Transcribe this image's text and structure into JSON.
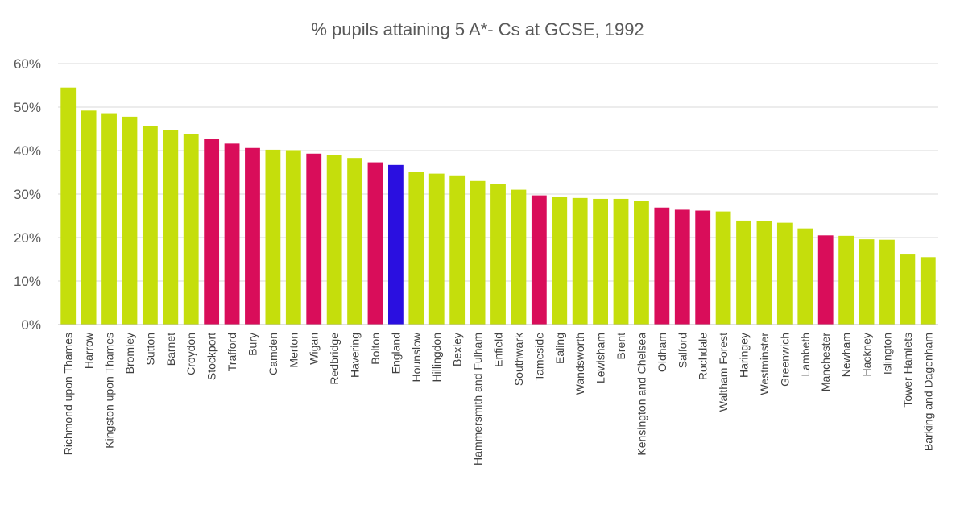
{
  "chart_data": {
    "type": "bar",
    "title": "% pupils attaining 5 A*- Cs at GCSE, 1992",
    "xlabel": "",
    "ylabel": "",
    "ylim": [
      0,
      60
    ],
    "yticks": [
      0,
      10,
      20,
      30,
      40,
      50,
      60
    ],
    "ytick_labels": [
      "0%",
      "10%",
      "20%",
      "30%",
      "40%",
      "50%",
      "60%"
    ],
    "grid": true,
    "legend": "none",
    "colors": {
      "london": "#c5de0c",
      "northwest": "#d90d5a",
      "england": "#2a0fe0"
    },
    "categories": [
      "Richmond upon Thames",
      "Harrow",
      "Kingston upon Thames",
      "Bromley",
      "Sutton",
      "Barnet",
      "Croydon",
      "Stockport",
      "Trafford",
      "Bury",
      "Camden",
      "Merton",
      "Wigan",
      "Redbridge",
      "Havering",
      "Bolton",
      "England",
      "Hounslow",
      "Hillingdon",
      "Bexley",
      "Hammersmith and Fulham",
      "Enfield",
      "Southwark",
      "Tameside",
      "Ealing",
      "Wandsworth",
      "Lewisham",
      "Brent",
      "Kensington and Chelsea",
      "Oldham",
      "Salford",
      "Rochdale",
      "Waltham Forest",
      "Haringey",
      "Westminster",
      "Greenwich",
      "Lambeth",
      "Manchester",
      "Newham",
      "Hackney",
      "Islington",
      "Tower Hamlets",
      "Barking and Dagenham"
    ],
    "values": [
      54.5,
      49.2,
      48.6,
      47.8,
      45.6,
      44.7,
      43.8,
      42.6,
      41.6,
      40.6,
      40.2,
      40.1,
      39.3,
      38.9,
      38.3,
      37.3,
      36.7,
      35.1,
      34.7,
      34.3,
      33.0,
      32.4,
      31.0,
      29.7,
      29.4,
      29.1,
      28.9,
      28.9,
      28.4,
      26.9,
      26.4,
      26.2,
      26.0,
      23.9,
      23.8,
      23.4,
      22.1,
      20.5,
      20.4,
      19.6,
      19.5,
      16.1,
      15.5
    ],
    "groups": [
      "london",
      "london",
      "london",
      "london",
      "london",
      "london",
      "london",
      "northwest",
      "northwest",
      "northwest",
      "london",
      "london",
      "northwest",
      "london",
      "london",
      "northwest",
      "england",
      "london",
      "london",
      "london",
      "london",
      "london",
      "london",
      "northwest",
      "london",
      "london",
      "london",
      "london",
      "london",
      "northwest",
      "northwest",
      "northwest",
      "london",
      "london",
      "london",
      "london",
      "london",
      "northwest",
      "london",
      "london",
      "london",
      "london",
      "london"
    ]
  }
}
